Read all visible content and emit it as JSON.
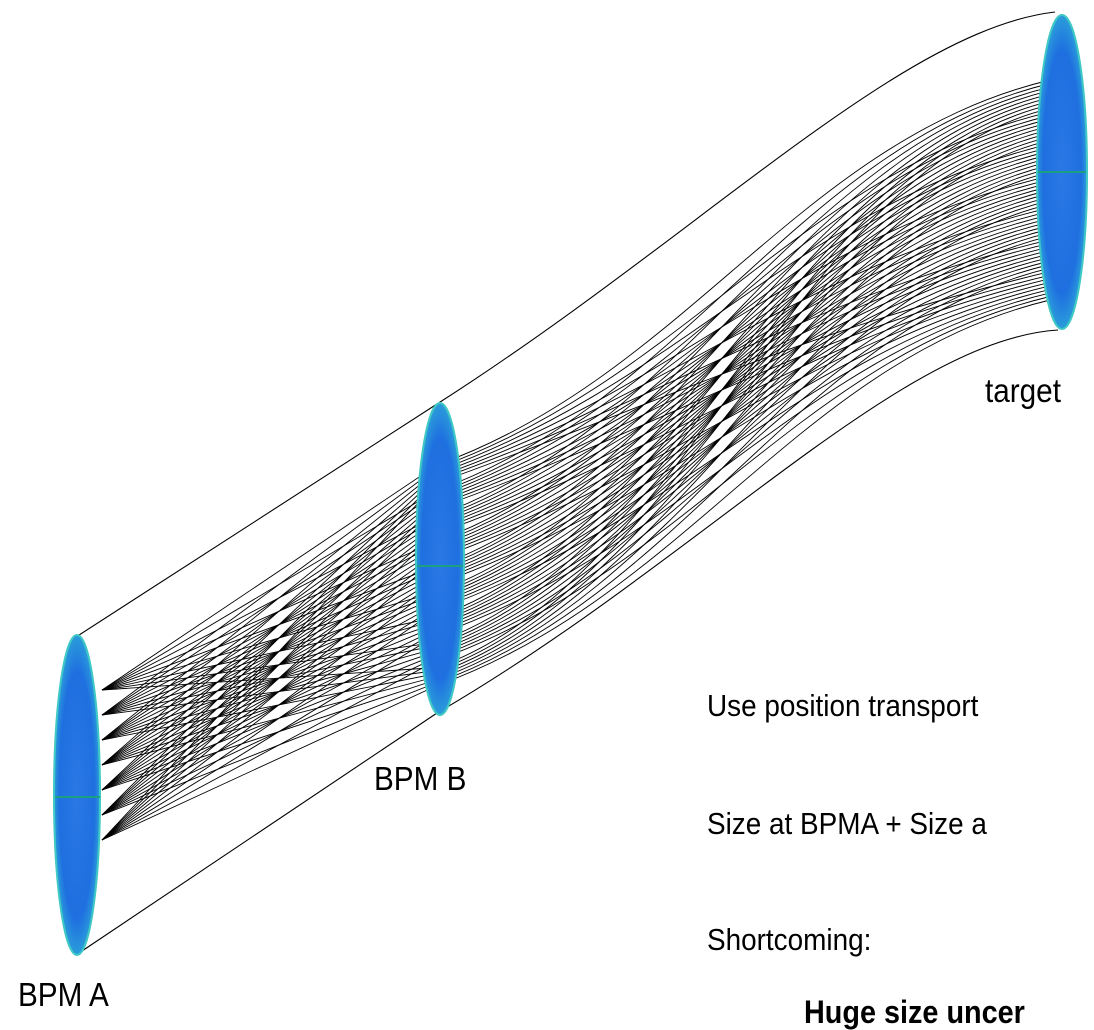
{
  "labels": {
    "bpm_a": "BPM A",
    "bpm_b": "BPM B",
    "target": "target"
  },
  "notes": {
    "line1": "Use position transport",
    "line2": "Size at BPMA + Size a",
    "line3": "Shortcoming:",
    "line4": "Huge size uncer"
  },
  "colors": {
    "ellipse_fill": "#2f7fe6",
    "ellipse_dark": "#1a5fc9",
    "ellipse_rim": "#3fd0c0",
    "ellipse_center_line": "#1aa080",
    "rays": "#000000"
  }
}
